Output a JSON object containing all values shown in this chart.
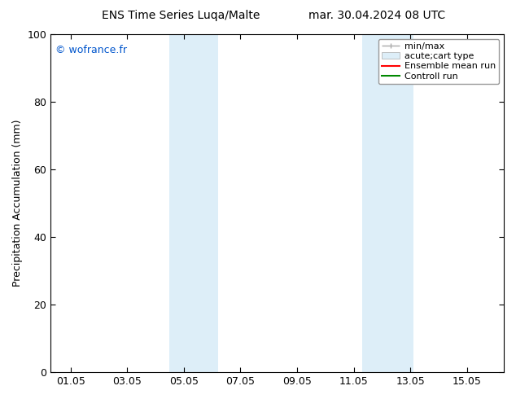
{
  "title_left": "ENS Time Series Luqa/Malte",
  "title_right": "mar. 30.04.2024 08 UTC",
  "ylabel": "Precipitation Accumulation (mm)",
  "watermark": "© wofrance.fr",
  "watermark_color": "#0055cc",
  "ylim": [
    0,
    100
  ],
  "yticks": [
    0,
    20,
    40,
    60,
    80,
    100
  ],
  "xtick_labels": [
    "01.05",
    "03.05",
    "05.05",
    "07.05",
    "09.05",
    "11.05",
    "13.05",
    "15.05"
  ],
  "xtick_positions": [
    0,
    2,
    4,
    6,
    8,
    10,
    12,
    14
  ],
  "xlim": [
    -0.7,
    15.3
  ],
  "shaded_regions": [
    {
      "xstart": 3.5,
      "xend": 5.2,
      "color": "#ddeef8"
    },
    {
      "xstart": 10.3,
      "xend": 12.1,
      "color": "#ddeef8"
    }
  ],
  "bg_color": "#ffffff",
  "shade_color": "#ddeef8",
  "legend_labels": [
    "min/max",
    "acute;cart type",
    "Ensemble mean run",
    "Controll run"
  ],
  "minmax_color": "#aaaaaa",
  "ensemble_color": "#ff0000",
  "control_color": "#008800",
  "font_size": 9,
  "title_font_size": 10,
  "watermark_font_size": 9
}
